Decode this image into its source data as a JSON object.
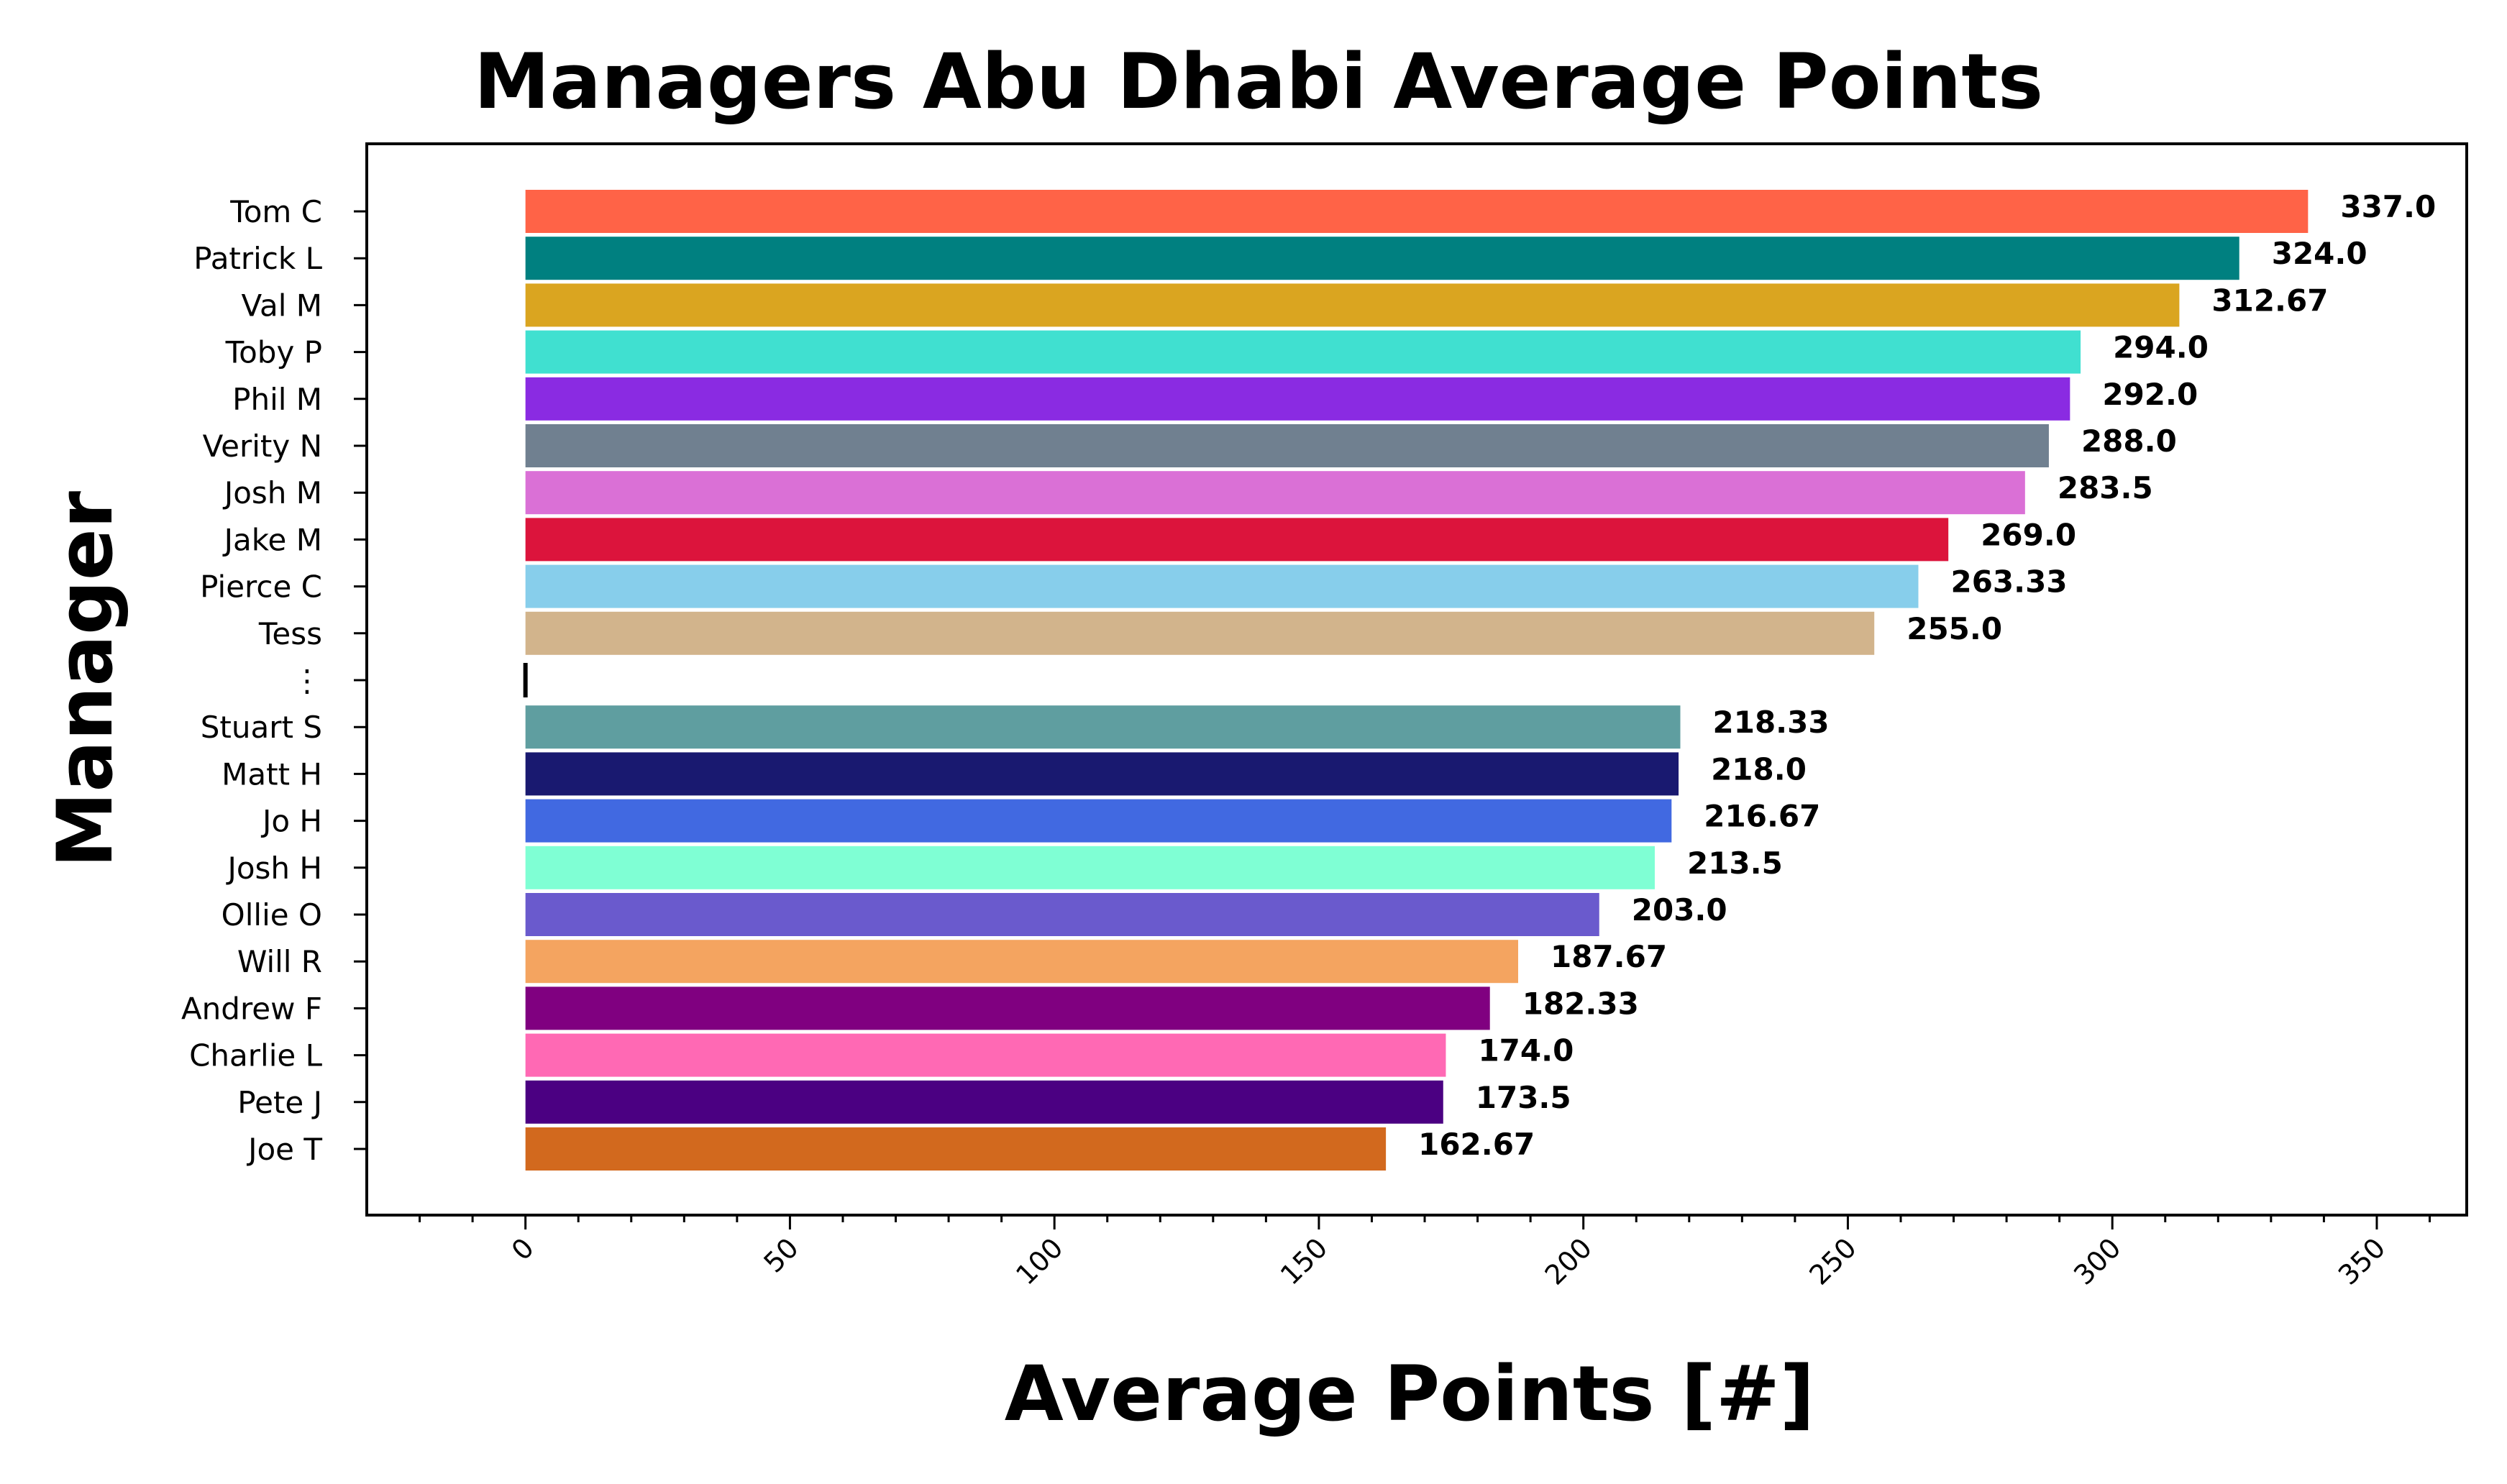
{
  "chart_data": {
    "type": "bar",
    "orientation": "horizontal",
    "title": "Managers Abu Dhabi Average Points",
    "xlabel": "Average Points [#]",
    "ylabel": "Manager",
    "xlim": [
      -30,
      367
    ],
    "xticks": [
      "0",
      "50",
      "100",
      "150",
      "200",
      "250",
      "300",
      "350"
    ],
    "xtick_values": [
      0,
      50,
      100,
      150,
      200,
      250,
      300,
      350
    ],
    "grid": false,
    "categories": [
      "Tom C",
      "Patrick L",
      "Val M",
      "Toby P",
      "Phil M",
      "Verity N",
      "Josh M",
      "Jake M",
      "Pierce C",
      "Tess",
      "⋮",
      "Stuart S",
      "Matt H",
      "Jo H",
      "Josh H",
      "Ollie O",
      "Will R",
      "Andrew F",
      "Charlie L",
      "Pete J",
      "Joe T"
    ],
    "values": [
      337.0,
      324.0,
      312.67,
      294.0,
      292.0,
      288.0,
      283.5,
      269.0,
      263.33,
      255.0,
      0,
      218.33,
      218.0,
      216.67,
      213.5,
      203.0,
      187.67,
      182.33,
      174.0,
      173.5,
      162.67
    ],
    "value_labels": [
      "337.0",
      "324.0",
      "312.67",
      "294.0",
      "292.0",
      "288.0",
      "283.5",
      "269.0",
      "263.33",
      "255.0",
      "",
      "218.33",
      "218.0",
      "216.67",
      "213.5",
      "203.0",
      "187.67",
      "182.33",
      "174.0",
      "173.5",
      "162.67"
    ],
    "colors": [
      "#FF6347",
      "#008080",
      "#DAA520",
      "#40E0D0",
      "#8A2BE2",
      "#708090",
      "#DA70D6",
      "#DC143C",
      "#87CEEB",
      "#D2B48C",
      "#000000",
      "#5F9EA0",
      "#191970",
      "#4169E1",
      "#7FFFD4",
      "#6A5ACD",
      "#F4A460",
      "#800080",
      "#FF69B4",
      "#4B0082",
      "#D2691E"
    ]
  }
}
